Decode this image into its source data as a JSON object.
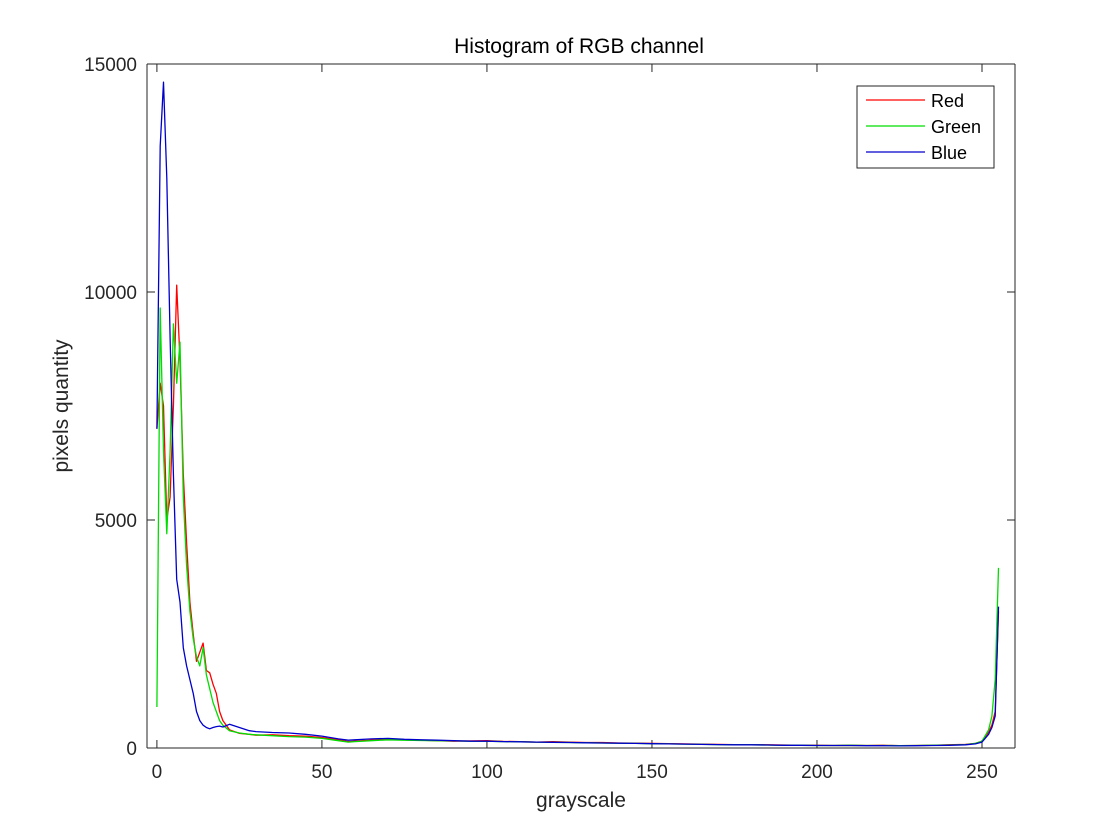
{
  "chart_data": {
    "type": "line",
    "title": "Histogram of RGB channel",
    "xlabel": "grayscale",
    "ylabel": "pixels quantity",
    "xlim": [
      -3,
      260
    ],
    "ylim": [
      0,
      15000
    ],
    "xticks": [
      0,
      50,
      100,
      150,
      200,
      250
    ],
    "yticks": [
      0,
      5000,
      10000,
      15000
    ],
    "xtick_labels": [
      "0",
      "50",
      "100",
      "150",
      "200",
      "250"
    ],
    "ytick_labels": [
      "0",
      "5000",
      "10000",
      "15000"
    ],
    "grid": false,
    "legend_position": "top-right",
    "series": [
      {
        "name": "Red",
        "color": "#ff0000",
        "x": [
          0,
          1,
          2,
          3,
          4,
          5,
          6,
          7,
          8,
          9,
          10,
          11,
          12,
          13,
          14,
          15,
          16,
          17,
          18,
          19,
          20,
          22,
          25,
          28,
          30,
          35,
          40,
          45,
          50,
          55,
          58,
          60,
          65,
          70,
          75,
          80,
          85,
          90,
          95,
          100,
          105,
          110,
          115,
          120,
          125,
          130,
          135,
          140,
          145,
          150,
          155,
          160,
          165,
          170,
          175,
          180,
          185,
          190,
          195,
          200,
          205,
          210,
          215,
          220,
          225,
          230,
          235,
          240,
          245,
          248,
          250,
          252,
          253,
          254,
          255
        ],
        "y": [
          7000,
          8000,
          7500,
          5000,
          5500,
          7500,
          10150,
          8500,
          6000,
          4500,
          3200,
          2500,
          1900,
          2100,
          2300,
          1700,
          1650,
          1400,
          1200,
          800,
          600,
          400,
          320,
          300,
          280,
          290,
          270,
          260,
          230,
          180,
          140,
          150,
          170,
          200,
          180,
          170,
          160,
          150,
          155,
          160,
          145,
          140,
          130,
          140,
          130,
          120,
          120,
          110,
          105,
          100,
          95,
          90,
          85,
          80,
          75,
          70,
          70,
          65,
          60,
          60,
          55,
          60,
          55,
          60,
          50,
          55,
          60,
          70,
          80,
          100,
          150,
          350,
          500,
          800,
          3000
        ]
      },
      {
        "name": "Green",
        "color": "#00dd00",
        "x": [
          0,
          1,
          2,
          3,
          4,
          5,
          6,
          7,
          8,
          9,
          10,
          11,
          12,
          13,
          14,
          15,
          16,
          17,
          18,
          19,
          20,
          22,
          25,
          28,
          30,
          35,
          40,
          45,
          50,
          55,
          58,
          60,
          65,
          70,
          75,
          80,
          85,
          90,
          95,
          100,
          105,
          110,
          115,
          120,
          125,
          130,
          135,
          140,
          145,
          150,
          155,
          160,
          165,
          170,
          175,
          180,
          185,
          190,
          195,
          200,
          205,
          210,
          215,
          220,
          225,
          230,
          235,
          240,
          245,
          248,
          250,
          252,
          253,
          254,
          255
        ],
        "y": [
          900,
          9650,
          6500,
          4700,
          6500,
          9300,
          8000,
          8900,
          5500,
          4000,
          3000,
          2400,
          2000,
          1800,
          2200,
          1600,
          1300,
          1000,
          800,
          600,
          500,
          380,
          330,
          300,
          290,
          270,
          250,
          240,
          210,
          160,
          130,
          140,
          160,
          180,
          170,
          165,
          160,
          155,
          150,
          150,
          140,
          135,
          130,
          125,
          120,
          115,
          110,
          105,
          100,
          95,
          90,
          85,
          80,
          75,
          70,
          70,
          65,
          60,
          60,
          55,
          55,
          60,
          55,
          55,
          50,
          55,
          60,
          65,
          75,
          100,
          150,
          400,
          700,
          1500,
          3950
        ]
      },
      {
        "name": "Blue",
        "color": "#0000cc",
        "x": [
          0,
          1,
          2,
          3,
          4,
          5,
          6,
          7,
          8,
          9,
          10,
          11,
          12,
          13,
          14,
          15,
          16,
          17,
          18,
          19,
          20,
          22,
          25,
          28,
          30,
          35,
          40,
          45,
          50,
          55,
          58,
          60,
          65,
          70,
          75,
          80,
          85,
          90,
          95,
          100,
          105,
          110,
          115,
          120,
          125,
          130,
          135,
          140,
          145,
          150,
          155,
          160,
          165,
          170,
          175,
          180,
          185,
          190,
          195,
          200,
          205,
          210,
          215,
          220,
          225,
          230,
          235,
          240,
          245,
          248,
          250,
          252,
          253,
          254,
          255
        ],
        "y": [
          7000,
          13200,
          14600,
          12500,
          9000,
          6000,
          3700,
          3200,
          2200,
          1800,
          1500,
          1200,
          800,
          600,
          500,
          450,
          420,
          450,
          470,
          480,
          460,
          520,
          450,
          380,
          360,
          340,
          330,
          300,
          260,
          200,
          170,
          180,
          200,
          210,
          190,
          180,
          170,
          160,
          150,
          150,
          140,
          135,
          130,
          125,
          120,
          115,
          110,
          105,
          100,
          95,
          90,
          85,
          80,
          75,
          70,
          70,
          65,
          60,
          60,
          55,
          55,
          55,
          50,
          50,
          45,
          50,
          55,
          60,
          70,
          90,
          130,
          300,
          450,
          700,
          3100
        ]
      }
    ]
  }
}
